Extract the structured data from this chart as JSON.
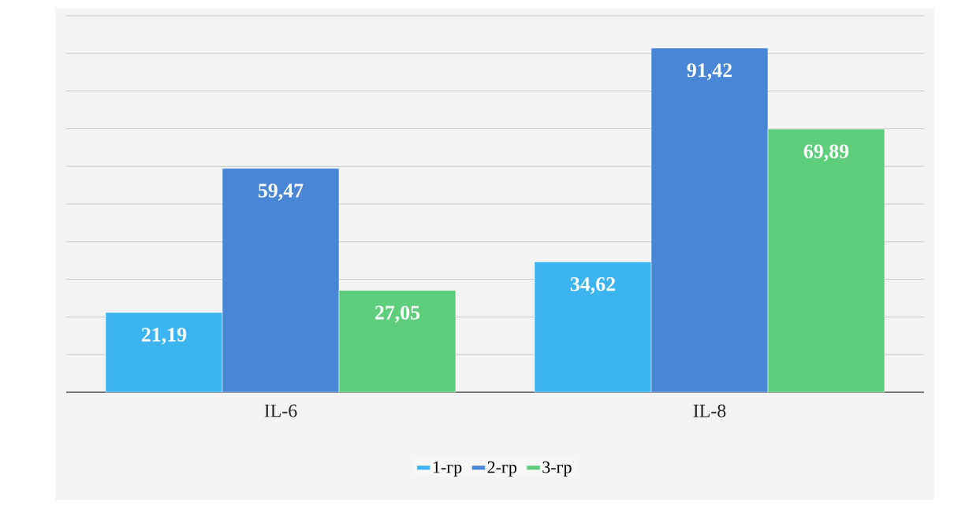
{
  "chart_data": {
    "type": "bar",
    "categories": [
      "IL-6",
      "IL-8"
    ],
    "series": [
      {
        "name": "1-гр",
        "color": "#3cb4ef",
        "values": [
          21.19,
          34.62
        ],
        "value_labels": [
          "21,19",
          "34,62"
        ]
      },
      {
        "name": "2-гр",
        "color": "#4a86d6",
        "values": [
          59.47,
          91.42
        ],
        "value_labels": [
          "59,47",
          "91,42"
        ]
      },
      {
        "name": "3-гр",
        "color": "#5ecd7c",
        "values": [
          27.05,
          69.89
        ],
        "value_labels": [
          "27,05",
          "69,89"
        ]
      }
    ],
    "ylim": [
      0,
      100
    ],
    "yticks": [
      {
        "value": 0,
        "label": null
      },
      {
        "value": 10,
        "label": null
      },
      {
        "value": 20,
        "label": null
      },
      {
        "value": 30,
        "label": null
      },
      {
        "value": 40,
        "label": null
      },
      {
        "value": 50,
        "label": null
      },
      {
        "value": 60,
        "label": null
      },
      {
        "value": 70,
        "label": null
      },
      {
        "value": 80,
        "label": null
      },
      {
        "value": 90,
        "label": null
      },
      {
        "value": 100,
        "label": null
      }
    ],
    "grid": "y",
    "legend": "bottom"
  }
}
